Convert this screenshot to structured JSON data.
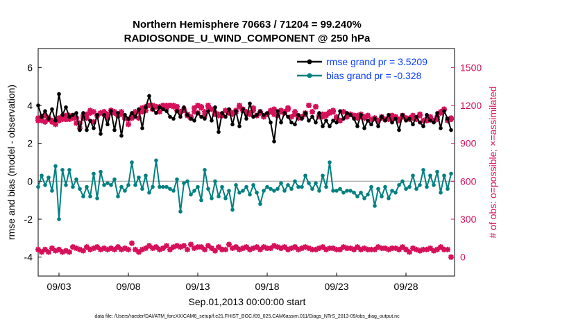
{
  "chart_data": {
    "type": "line",
    "title_line1": "Northern Hemisphere 70663 / 71204 = 99.240%",
    "title_line2": "RADIOSONDE_U_WIND_COMPONENT @ 250 hPa",
    "xlabel": "Sep.01,2013 00:00:00 start",
    "ylabel_left": "rmse and bias (model - observation)",
    "ylabel_right": "# of obs: o=possible; ×=assimilated",
    "footer": "data file: /Users/raeder/DAI/ATM_forcXX/CAM6_setup/f.e21.FHIST_BGC.f09_025.CAM6assim.011/Diags_NTrS_2013-09/obs_diag_output.nc",
    "x_range": [
      1.5,
      31.5
    ],
    "x_ticks": [
      3,
      8,
      13,
      18,
      23,
      28
    ],
    "x_tick_labels": [
      "09/03",
      "09/08",
      "09/13",
      "09/18",
      "09/23",
      "09/28"
    ],
    "ylim_left": [
      -5,
      7
    ],
    "yticks_left": [
      6,
      4,
      2,
      0,
      -2,
      -4
    ],
    "ylim_right": [
      -150,
      1650
    ],
    "yticks_right": [
      1500,
      1200,
      900,
      600,
      300,
      0
    ],
    "legend_location": "top-right",
    "grid": false,
    "zero_line": true,
    "colors": {
      "rmse": "#000000",
      "bias": "#008080",
      "obs": "#d6105a",
      "zero": "#b3b3b3",
      "legend_text": "#0a3fff"
    },
    "x": [
      1.5,
      1.75,
      2,
      2.25,
      2.5,
      2.75,
      3,
      3.25,
      3.5,
      3.75,
      4,
      4.25,
      4.5,
      4.75,
      5,
      5.25,
      5.5,
      5.75,
      6,
      6.25,
      6.5,
      6.75,
      7,
      7.25,
      7.5,
      7.75,
      8,
      8.25,
      8.5,
      8.75,
      9,
      9.25,
      9.5,
      9.75,
      10,
      10.25,
      10.5,
      10.75,
      11,
      11.25,
      11.5,
      11.75,
      12,
      12.25,
      12.5,
      12.75,
      13,
      13.25,
      13.5,
      13.75,
      14,
      14.25,
      14.5,
      14.75,
      15,
      15.25,
      15.5,
      15.75,
      16,
      16.25,
      16.5,
      16.75,
      17,
      17.25,
      17.5,
      17.75,
      18,
      18.25,
      18.5,
      18.75,
      19,
      19.25,
      19.5,
      19.75,
      20,
      20.25,
      20.5,
      20.75,
      21,
      21.25,
      21.5,
      21.75,
      22,
      22.25,
      22.5,
      22.75,
      23,
      23.25,
      23.5,
      23.75,
      24,
      24.25,
      24.5,
      24.75,
      25,
      25.25,
      25.5,
      25.75,
      26,
      26.25,
      26.5,
      26.75,
      27,
      27.25,
      27.5,
      27.75,
      28,
      28.25,
      28.5,
      28.75,
      29,
      29.25,
      29.5,
      29.75,
      30,
      30.25,
      30.5,
      30.75,
      31,
      31.25
    ],
    "series": [
      {
        "name": "rmse grand pr = 3.5209",
        "axis": "left",
        "values": [
          4.0,
          3.4,
          3.7,
          3.3,
          3.8,
          3.2,
          4.6,
          3.5,
          3.9,
          3.4,
          3.5,
          3.6,
          2.7,
          3.6,
          2.7,
          3.2,
          2.8,
          3.5,
          2.5,
          3.5,
          3.0,
          3.7,
          2.7,
          3.6,
          2.4,
          3.5,
          3.3,
          3.6,
          3.4,
          3.8,
          2.8,
          3.9,
          4.5,
          3.8,
          3.6,
          3.9,
          3.8,
          3.7,
          3.4,
          3.3,
          3.7,
          3.4,
          3.9,
          3.5,
          3.3,
          3.2,
          3.6,
          3.4,
          3.3,
          3.7,
          3.2,
          3.9,
          2.6,
          3.6,
          3.4,
          3.8,
          3.0,
          3.7,
          2.9,
          3.8,
          3.3,
          4.1,
          3.4,
          3.5,
          3.7,
          3.5,
          3.6,
          3.1,
          2.1,
          3.7,
          3.1,
          3.6,
          3.4,
          3.1,
          3.0,
          3.5,
          3.3,
          3.6,
          3.2,
          3.4,
          3.1,
          3.6,
          2.9,
          3.2,
          2.9,
          3.2,
          3.1,
          3.7,
          3.3,
          3.6,
          3.5,
          3.3,
          2.9,
          3.5,
          2.8,
          3.2,
          3.0,
          3.3,
          2.9,
          3.4,
          3.2,
          3.5,
          3.1,
          3.3,
          2.7,
          3.5,
          3.2,
          3.3,
          3.0,
          3.4,
          3.1,
          2.9,
          3.5,
          3.2,
          3.1,
          3.6,
          2.8,
          3.7,
          3.3,
          2.7
        ]
      },
      {
        "name": "bias grand pr = -0.328",
        "axis": "left",
        "values": [
          -0.3,
          0.3,
          -0.2,
          0.2,
          -0.5,
          0.8,
          -2.0,
          0.6,
          -0.2,
          0.6,
          -0.3,
          0.1,
          -0.4,
          -0.8,
          -0.3,
          -0.8,
          0.4,
          -0.9,
          0.5,
          -0.2,
          -0.1,
          -0.2,
          0.1,
          -0.8,
          -0.3,
          -0.5,
          -0.2,
          1.0,
          -0.2,
          0.2,
          -0.4,
          0.3,
          -0.6,
          -0.3,
          1.1,
          -0.3,
          -0.3,
          -0.3,
          -0.4,
          -0.5,
          0.1,
          -1.6,
          -0.1,
          0.0,
          -0.7,
          -0.5,
          -0.3,
          -1.0,
          0.6,
          -0.4,
          -0.9,
          0.0,
          -0.8,
          -0.3,
          -0.9,
          -0.5,
          -1.5,
          -0.2,
          -0.6,
          -0.5,
          -0.3,
          -0.7,
          -0.2,
          -0.6,
          -1.2,
          -0.5,
          -0.3,
          -0.4,
          -0.5,
          -0.4,
          -0.1,
          -0.5,
          -0.2,
          -0.4,
          0.0,
          -0.3,
          -0.3,
          0.3,
          -0.1,
          -0.4,
          -0.1,
          -0.5,
          0.3,
          -0.3,
          1.0,
          -0.5,
          -0.5,
          -0.4,
          -0.6,
          -0.5,
          -0.5,
          -0.6,
          -0.8,
          -0.6,
          -0.9,
          -0.7,
          -0.3,
          -1.3,
          -0.4,
          -0.8,
          -0.3,
          -0.9,
          -0.5,
          -0.6,
          -0.2,
          0.0,
          -0.4,
          -0.3,
          0.3,
          -0.4,
          -0.2,
          0.6,
          -0.3,
          0.3,
          -0.2,
          0.5,
          -0.6,
          0.3,
          -0.4,
          0.4
        ]
      },
      {
        "name": "obs_possible",
        "axis": "right",
        "values": [
          1080,
          1110,
          1070,
          1100,
          1080,
          1050,
          1080,
          1110,
          1090,
          1120,
          1100,
          1060,
          1020,
          1100,
          1100,
          1160,
          1070,
          1120,
          1140,
          1130,
          1100,
          1160,
          1150,
          1120,
          1130,
          1100,
          1050,
          1100,
          1140,
          1100,
          1150,
          1160,
          1200,
          1170,
          1190,
          1150,
          1200,
          1180,
          1200,
          1200,
          1190,
          1150,
          1160,
          1130,
          1110,
          1150,
          1140,
          1180,
          1120,
          1200,
          1170,
          1130,
          1120,
          1130,
          1160,
          1140,
          1140,
          1150,
          1200,
          1160,
          1140,
          1130,
          1160,
          1120,
          1150,
          1110,
          1130,
          1160,
          1130,
          1120,
          1150,
          1140,
          1180,
          1110,
          1130,
          1100,
          1110,
          1130,
          1200,
          1150,
          1190,
          1120,
          1110,
          1120,
          1140,
          1150,
          1100,
          1080,
          1150,
          1110,
          1130,
          1120,
          1100,
          1130,
          1110,
          1120,
          1090,
          1100,
          1080,
          1100,
          1090,
          1090,
          1120,
          1110,
          1090,
          1120,
          1100,
          1100,
          1120,
          1090,
          1130,
          1080,
          1090,
          1100,
          1080,
          1110,
          1150,
          1170,
          1090,
          1100
        ]
      },
      {
        "name": "obs_assimilated",
        "axis": "right",
        "values": [
          1100,
          1080,
          1120,
          1090,
          1070,
          1080,
          1100,
          1090,
          1120,
          1090,
          1120,
          1100,
          1060,
          1120,
          1130,
          1140,
          1150,
          1120,
          1140,
          1150,
          1130,
          1160,
          1140,
          1120,
          1150,
          1100,
          1090,
          1120,
          1150,
          1150,
          1180,
          1190,
          1200,
          1200,
          1190,
          1190,
          1180,
          1200,
          1200,
          1190,
          1160,
          1150,
          1170,
          1120,
          1100,
          1180,
          1200,
          1190,
          1150,
          1190,
          1170,
          1140,
          1130,
          1120,
          1160,
          1160,
          1130,
          1160,
          1190,
          1170,
          1150,
          1140,
          1180,
          1120,
          1140,
          1110,
          1130,
          1150,
          1170,
          1120,
          1160,
          1150,
          1170,
          1110,
          1150,
          1110,
          1110,
          1140,
          1200,
          1150,
          1190,
          1110,
          1130,
          1130,
          1150,
          1160,
          1110,
          1080,
          1150,
          1110,
          1130,
          1120,
          1120,
          1110,
          1100,
          1120,
          1090,
          1100,
          1080,
          1110,
          1090,
          1100,
          1100,
          1110,
          1080,
          1110,
          1100,
          1090,
          1100,
          1090,
          1120,
          1080,
          1080,
          1110,
          1080,
          1090,
          1140,
          1170,
          1080,
          1090
        ]
      },
      {
        "name": "obs_low",
        "axis": "right",
        "values": [
          60,
          40,
          60,
          40,
          70,
          50,
          60,
          40,
          50,
          40,
          80,
          70,
          60,
          50,
          80,
          60,
          70,
          80,
          60,
          70,
          60,
          70,
          60,
          80,
          60,
          70,
          60,
          110,
          60,
          40,
          60,
          70,
          90,
          70,
          80,
          60,
          70,
          90,
          60,
          80,
          90,
          80,
          90,
          60,
          100,
          70,
          80,
          80,
          60,
          90,
          70,
          50,
          80,
          60,
          60,
          100,
          70,
          80,
          60,
          70,
          80,
          60,
          70,
          80,
          60,
          80,
          70,
          70,
          90,
          80,
          70,
          80,
          60,
          70,
          80,
          60,
          70,
          80,
          70,
          60,
          60,
          70,
          80,
          60,
          70,
          70,
          60,
          60,
          80,
          70,
          70,
          60,
          80,
          60,
          70,
          60,
          60,
          60,
          80,
          70,
          70,
          60,
          70,
          70,
          60,
          80,
          60,
          40,
          70,
          60,
          50,
          60,
          60,
          70,
          50,
          60,
          80,
          60,
          60,
          0
        ]
      }
    ]
  }
}
